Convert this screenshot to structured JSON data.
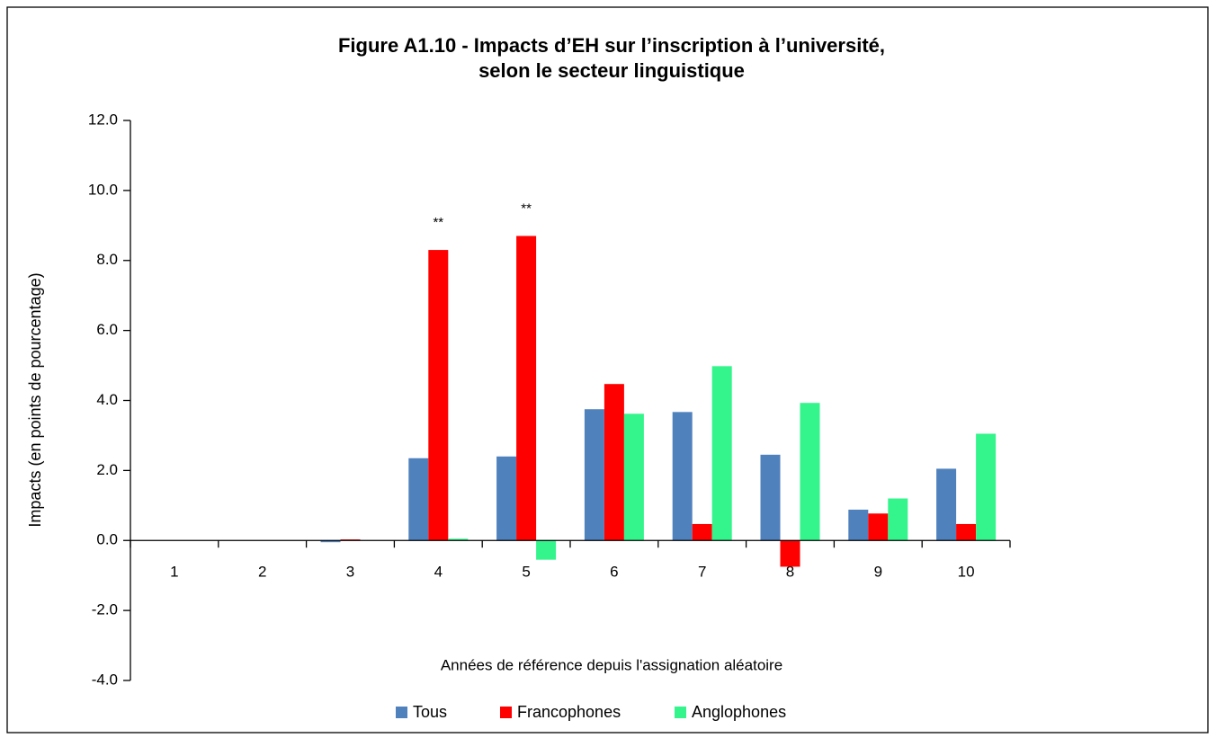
{
  "chart_data": {
    "type": "bar",
    "title": [
      "Figure A1.10 - Impacts d’EH sur l’inscription à l’université,",
      "selon le secteur linguistique"
    ],
    "x_label": "Années de référence depuis l'assignation aléatoire",
    "y_label": "Impacts (en points de pourcentage)",
    "categories": [
      "1",
      "2",
      "3",
      "4",
      "5",
      "6",
      "7",
      "8",
      "9",
      "10"
    ],
    "series": [
      {
        "name": "Tous",
        "color": "#4f81bd",
        "values": [
          0,
          0,
          -0.05,
          2.35,
          2.4,
          3.75,
          3.67,
          2.45,
          0.88,
          2.05
        ]
      },
      {
        "name": "Francophones",
        "color": "#ff0000",
        "values": [
          0,
          0,
          0.03,
          8.3,
          8.7,
          4.47,
          0.47,
          -0.75,
          0.77,
          0.47
        ]
      },
      {
        "name": "Anglophones",
        "color": "#33f58c",
        "values": [
          0,
          0,
          0,
          0.05,
          -0.55,
          3.62,
          4.98,
          3.93,
          1.2,
          3.05
        ]
      }
    ],
    "annotations": [
      {
        "text": "**",
        "x": "4",
        "series": "Francophones"
      },
      {
        "text": "**",
        "x": "5",
        "series": "Francophones"
      }
    ],
    "ylim": [
      -4,
      12
    ],
    "yticks": [
      {
        "value": -4,
        "label": "-4.0"
      },
      {
        "value": -2,
        "label": "-2.0"
      },
      {
        "value": 0,
        "label": "0.0"
      },
      {
        "value": 2,
        "label": "2.0"
      },
      {
        "value": 4,
        "label": "4.0"
      },
      {
        "value": 6,
        "label": "6.0"
      },
      {
        "value": 8,
        "label": "8.0"
      },
      {
        "value": 10,
        "label": "10.0"
      },
      {
        "value": 12,
        "label": "12.0"
      }
    ],
    "grid": false,
    "legend": "bottom"
  }
}
